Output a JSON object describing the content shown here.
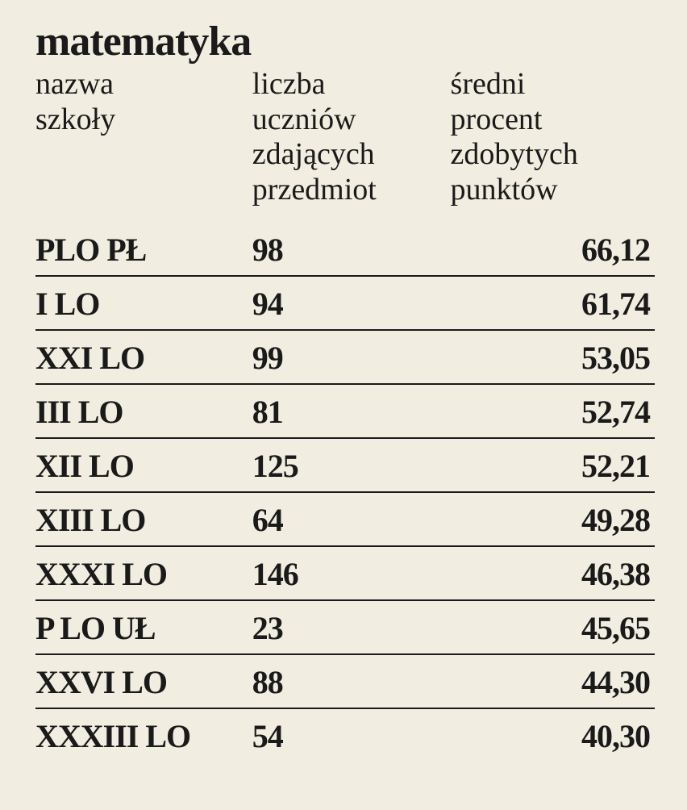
{
  "title": "matematyka",
  "background_color": "#f1eee1",
  "text_color": "#1a1a1a",
  "border_color": "#1a1a1a",
  "title_fontsize": 52,
  "header_fontsize": 38,
  "cell_fontsize": 40,
  "columns": {
    "name": "nazwa\nszkoły",
    "count": "liczba\nuczniów\nzdających\nprzedmiot",
    "score": "średni\nprocent\nzdobytych\npunktów"
  },
  "rows": [
    {
      "name": "PLO PŁ",
      "count": "98",
      "score": "66,12"
    },
    {
      "name": "I LO",
      "count": "94",
      "score": "61,74"
    },
    {
      "name": "XXI LO",
      "count": "99",
      "score": "53,05"
    },
    {
      "name": "III LO",
      "count": "81",
      "score": "52,74"
    },
    {
      "name": "XII LO",
      "count": "125",
      "score": "52,21"
    },
    {
      "name": "XIII LO",
      "count": "64",
      "score": "49,28"
    },
    {
      "name": "XXXI LO",
      "count": "146",
      "score": "46,38"
    },
    {
      "name": "P LO UŁ",
      "count": "23",
      "score": "45,65"
    },
    {
      "name": "XXVI LO",
      "count": "88",
      "score": "44,30"
    },
    {
      "name": "XXXIII LO",
      "count": "54",
      "score": "40,30"
    }
  ]
}
